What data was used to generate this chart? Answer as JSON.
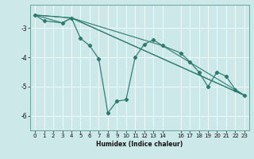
{
  "xlabel": "Humidex (Indice chaleur)",
  "bg_color": "#cce8e8",
  "grid_color": "#e8f8f8",
  "line_color": "#2d7a6e",
  "xlim": [
    -0.5,
    23.5
  ],
  "ylim": [
    -6.5,
    -2.2
  ],
  "yticks": [
    -6,
    -5,
    -4,
    -3
  ],
  "xticks": [
    0,
    1,
    2,
    3,
    4,
    5,
    6,
    7,
    8,
    9,
    10,
    11,
    12,
    13,
    14,
    16,
    17,
    18,
    19,
    20,
    21,
    22,
    23
  ],
  "line1": {
    "x": [
      0,
      1,
      3,
      4,
      5,
      6,
      7,
      8,
      9,
      10,
      11,
      12,
      13,
      14,
      16,
      17,
      18,
      19,
      20,
      21,
      22,
      23
    ],
    "y": [
      -2.55,
      -2.75,
      -2.82,
      -2.65,
      -3.35,
      -3.6,
      -4.05,
      -5.9,
      -5.5,
      -5.45,
      -4.0,
      -3.55,
      -3.4,
      -3.6,
      -3.85,
      -4.15,
      -4.5,
      -5.0,
      -4.5,
      -4.65,
      -5.1,
      -5.3
    ]
  },
  "line2": {
    "x": [
      0,
      3,
      4,
      23
    ],
    "y": [
      -2.55,
      -2.82,
      -2.65,
      -5.3
    ]
  },
  "line3": {
    "x": [
      0,
      4,
      23
    ],
    "y": [
      -2.55,
      -2.65,
      -5.3
    ]
  },
  "line4": {
    "x": [
      0,
      4,
      14,
      23
    ],
    "y": [
      -2.55,
      -2.65,
      -3.6,
      -5.3
    ]
  }
}
